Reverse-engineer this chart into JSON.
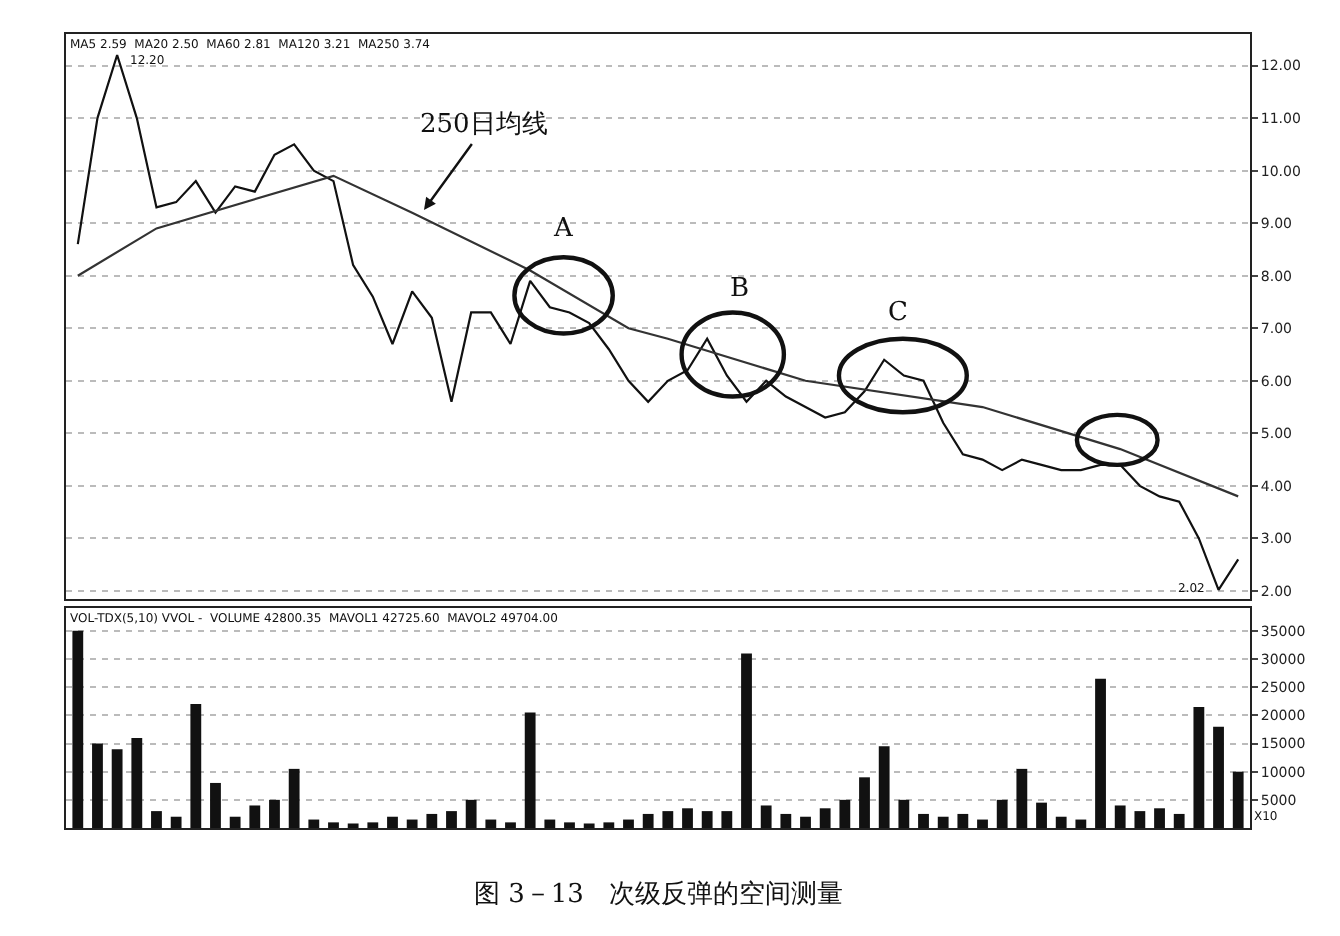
{
  "chart_data": [
    {
      "type": "line",
      "categories": [
        null,
        null,
        null,
        null,
        null,
        null,
        null,
        null,
        null,
        null,
        null,
        null,
        null,
        null,
        null,
        null,
        null,
        null,
        null,
        null,
        null,
        null,
        null,
        null,
        null,
        null,
        null,
        null,
        null,
        null,
        null,
        null,
        null,
        null,
        null,
        null,
        null,
        null,
        null,
        null,
        null,
        null,
        null,
        null,
        null,
        null,
        null,
        null,
        null,
        null,
        null,
        null,
        null,
        null,
        null,
        null,
        null,
        null,
        null,
        null
      ],
      "series": [
        {
          "color": "#111111",
          "values": [
            8.6,
            11.0,
            12.2,
            11.0,
            9.3,
            9.4,
            9.8,
            9.2,
            9.7,
            9.6,
            10.3,
            10.5,
            10.0,
            9.8,
            8.2,
            7.6,
            6.7,
            7.7,
            7.2,
            5.6,
            7.3,
            7.3,
            6.7,
            7.9,
            7.4,
            7.3,
            7.1,
            6.6,
            6.0,
            5.6,
            6.0,
            6.2,
            6.8,
            6.1,
            5.6,
            6.0,
            5.7,
            5.5,
            5.3,
            5.4,
            5.8,
            6.4,
            6.1,
            6.0,
            5.2,
            4.6,
            4.5,
            4.3,
            4.5,
            4.4,
            4.3,
            4.3,
            4.4,
            4.4,
            4.0,
            3.8,
            3.7,
            3.0,
            2.02,
            2.6
          ]
        },
        {
          "color": "#333333",
          "values": [
            8.0,
            null,
            null,
            null,
            8.9,
            null,
            null,
            null,
            null,
            null,
            null,
            null,
            null,
            9.9,
            null,
            null,
            null,
            9.2,
            null,
            null,
            null,
            null,
            null,
            8.1,
            null,
            null,
            null,
            null,
            7.0,
            null,
            6.8,
            null,
            null,
            null,
            null,
            null,
            null,
            6.0,
            null,
            null,
            null,
            null,
            null,
            null,
            null,
            null,
            5.5,
            null,
            null,
            null,
            null,
            null,
            null,
            4.7,
            null,
            null,
            null,
            null,
            null,
            3.8
          ]
        }
      ],
      "ylim": [
        1.85,
        12.6
      ],
      "yticks": [
        {
          "value": 2,
          "label": "2.00"
        },
        {
          "value": 3,
          "label": "3.00"
        },
        {
          "value": 4,
          "label": "4.00"
        },
        {
          "value": 5,
          "label": "5.00"
        },
        {
          "value": 6,
          "label": "6.00"
        },
        {
          "value": 7,
          "label": "7.00"
        },
        {
          "value": 8,
          "label": "8.00"
        },
        {
          "value": 9,
          "label": "9.00"
        },
        {
          "value": 10,
          "label": "10.00"
        },
        {
          "value": 11,
          "label": "11.00"
        },
        {
          "value": 12,
          "label": "12.00"
        }
      ],
      "grid": "y",
      "tick_labels": "y",
      "annotations": [
        "MA5 2.59  MA20 2.50  MA60 2.81  MA120 3.21  MA250 3.74",
        "250日均线",
        "A",
        "B",
        "C",
        "12.20",
        "2.02"
      ]
    },
    {
      "type": "bar",
      "categories": [
        null,
        null,
        null,
        null,
        null,
        null,
        null,
        null,
        null,
        null,
        null,
        null,
        null,
        null,
        null,
        null,
        null,
        null,
        null,
        null,
        null,
        null,
        null,
        null,
        null,
        null,
        null,
        null,
        null,
        null,
        null,
        null,
        null,
        null,
        null,
        null,
        null,
        null,
        null,
        null,
        null,
        null,
        null,
        null,
        null,
        null,
        null,
        null,
        null,
        null,
        null,
        null,
        null,
        null,
        null,
        null,
        null,
        null,
        null,
        null
      ],
      "values": [
        35000,
        15000,
        14000,
        16000,
        3000,
        2000,
        22000,
        8000,
        2000,
        4000,
        5000,
        10500,
        1500,
        1000,
        800,
        1000,
        2000,
        1500,
        2500,
        3000,
        5000,
        1500,
        1000,
        20500,
        1500,
        1000,
        800,
        1000,
        1500,
        2500,
        3000,
        3500,
        3000,
        3000,
        31000,
        4000,
        2500,
        2000,
        3500,
        5000,
        9000,
        14500,
        5000,
        2500,
        2000,
        2500,
        1500,
        5000,
        10500,
        4500,
        2000,
        1500,
        26500,
        4000,
        3000,
        3500,
        2500,
        21500,
        18000,
        10000
      ],
      "color": "#111111",
      "ylim": [
        0,
        39000
      ],
      "yticks": [
        5000,
        10000,
        15000,
        20000,
        25000,
        30000,
        35000
      ],
      "grid": "y",
      "tick_labels": "y",
      "annotations": [
        "VOL-TDX(5,10) VVOL -  VOLUME 42800.35  MAVOL1 42725.60  MAVOL2 49704.00",
        "X10",
        "图 3－13   次级反弹的空间测量"
      ]
    }
  ]
}
